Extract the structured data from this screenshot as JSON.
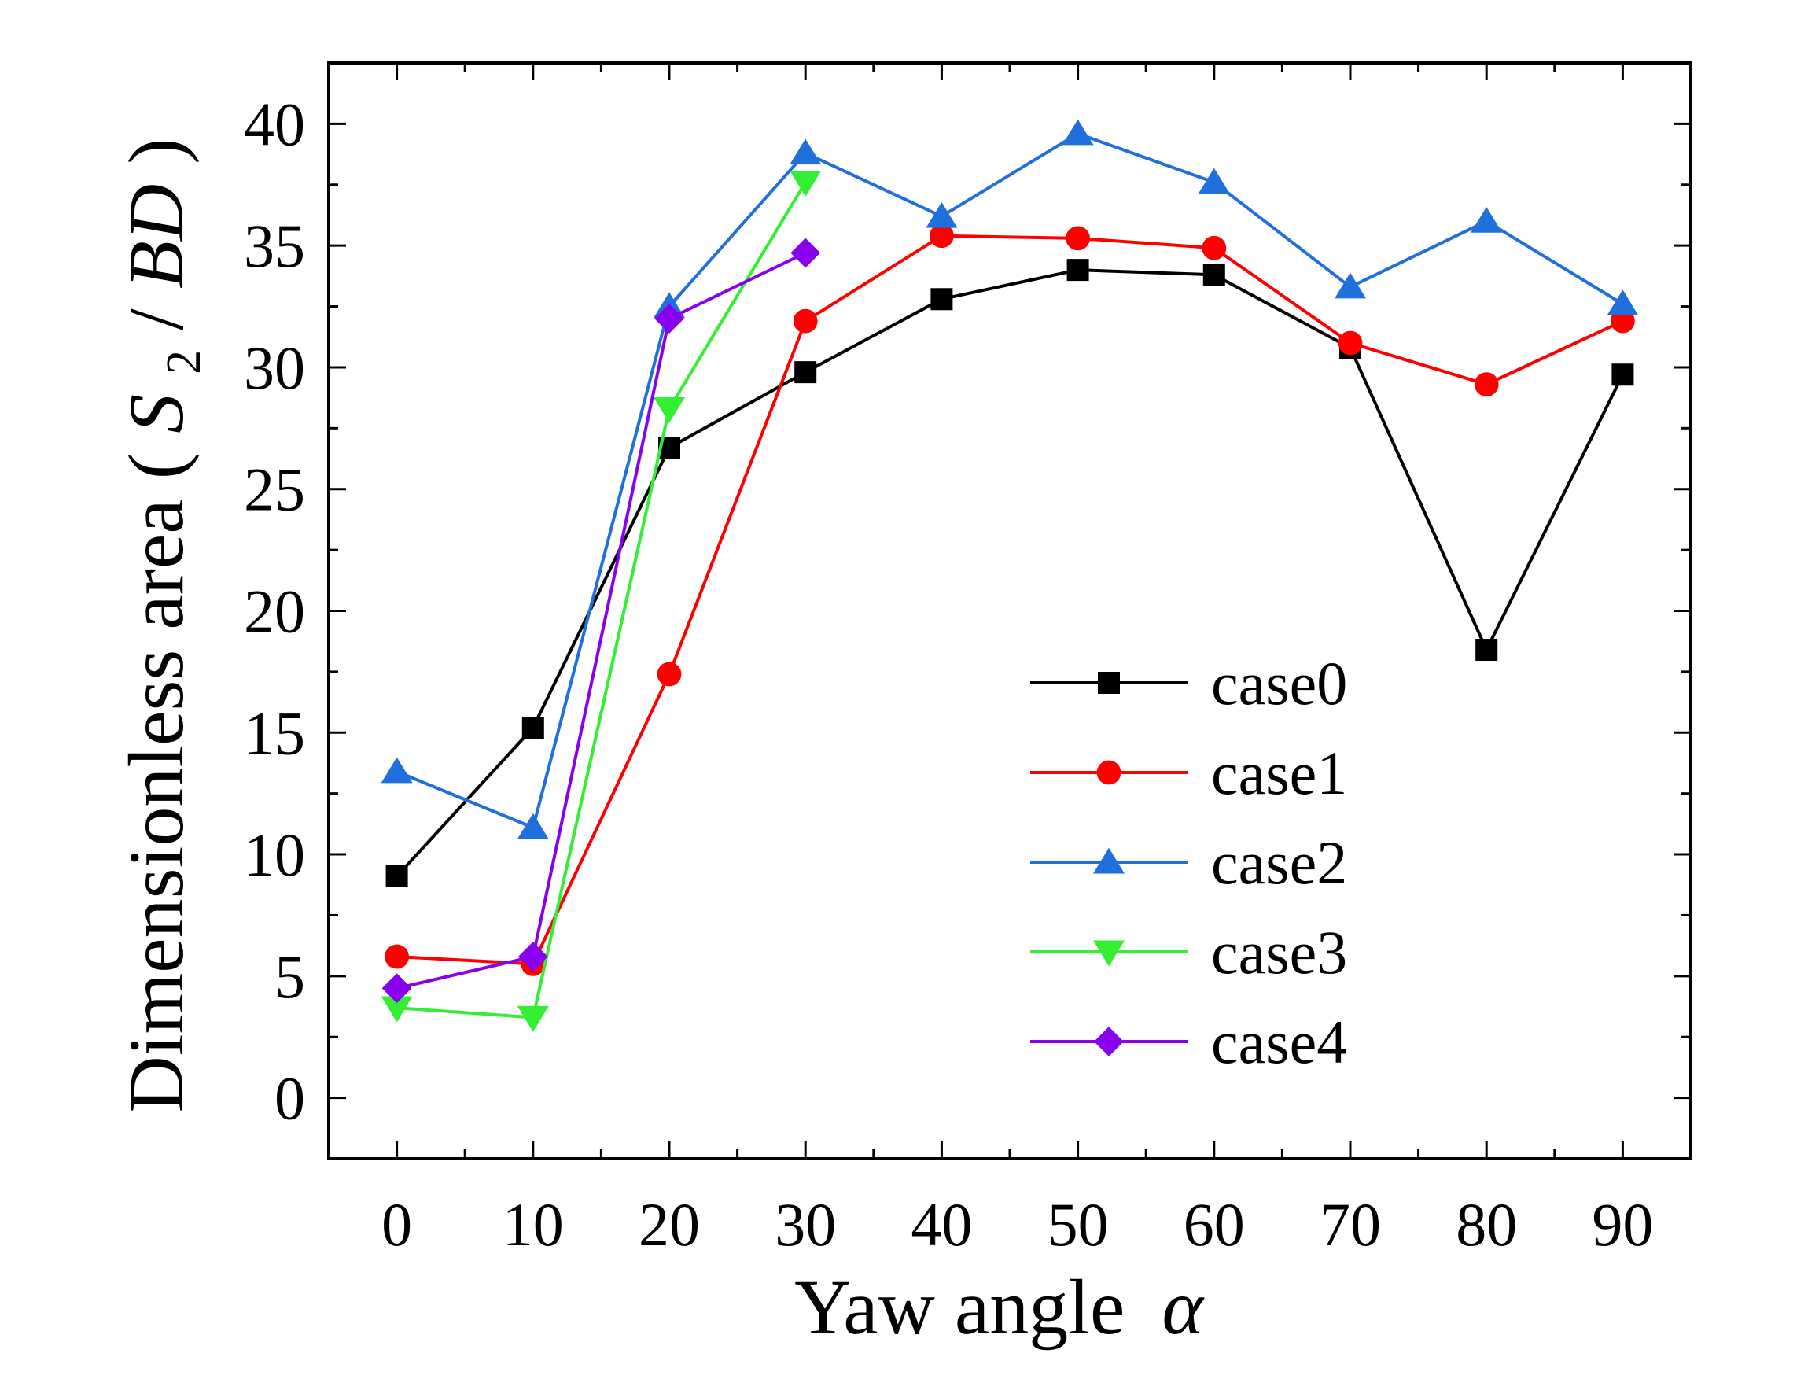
{
  "chart_data": {
    "type": "line",
    "title": "",
    "xlabel": "Yaw angle",
    "xlabel_symbol": "α",
    "ylabel": "Dimensionless area (",
    "ylabel_S": "S",
    "ylabel_sub": "2",
    "ylabel_slash": "/",
    "ylabel_BD": "BD",
    "ylabel_close": ")",
    "xlim": [
      -5,
      95
    ],
    "ylim": [
      -2.5,
      42.5
    ],
    "x_ticks": [
      0,
      10,
      20,
      30,
      40,
      50,
      60,
      70,
      80,
      90
    ],
    "y_ticks": [
      0,
      5,
      10,
      15,
      20,
      25,
      30,
      35,
      40
    ],
    "legend_position": "lower-right",
    "series": [
      {
        "name": "case0",
        "color": "#000000",
        "marker": "square",
        "x": [
          0,
          10,
          20,
          30,
          40,
          50,
          60,
          70,
          80,
          90
        ],
        "values": [
          9.1,
          15.2,
          26.7,
          29.8,
          32.8,
          34.0,
          33.8,
          30.8,
          18.4,
          29.7
        ]
      },
      {
        "name": "case1",
        "color": "#ff0000",
        "marker": "circle",
        "x": [
          0,
          10,
          20,
          30,
          40,
          50,
          60,
          70,
          80,
          90
        ],
        "values": [
          5.8,
          5.5,
          17.4,
          31.9,
          35.4,
          35.3,
          34.9,
          31.0,
          29.3,
          31.9
        ]
      },
      {
        "name": "case2",
        "color": "#1f6fdc",
        "marker": "triangle-up",
        "x": [
          0,
          10,
          20,
          30,
          40,
          50,
          60,
          70,
          80,
          90
        ],
        "values": [
          13.4,
          11.1,
          32.5,
          38.8,
          36.2,
          39.6,
          37.6,
          33.3,
          36.0,
          32.6
        ]
      },
      {
        "name": "case3",
        "color": "#33ee33",
        "marker": "triangle-down",
        "x": [
          0,
          10,
          20,
          30
        ],
        "values": [
          3.7,
          3.3,
          28.3,
          37.6
        ]
      },
      {
        "name": "case4",
        "color": "#8800ee",
        "marker": "diamond",
        "x": [
          0,
          10,
          20,
          30
        ],
        "values": [
          4.5,
          5.8,
          32.0,
          34.7
        ]
      }
    ]
  }
}
